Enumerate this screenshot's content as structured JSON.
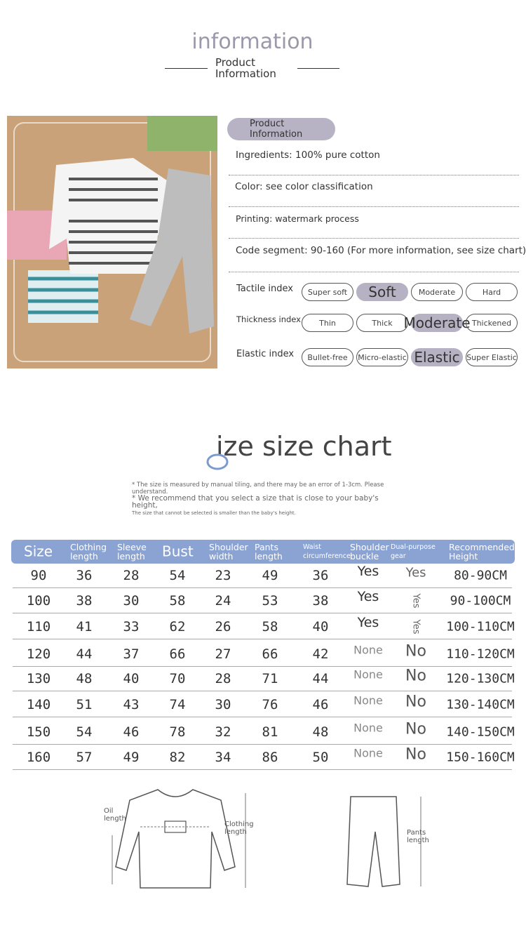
{
  "header": {
    "title": "information",
    "subtitle": "Product Information"
  },
  "info": {
    "badge": "Product Information",
    "lines": [
      "Ingredients: 100% pure cotton",
      "Color: see color classification",
      "Printing: watermark process",
      "Code segment: 90-160 (For more information, see size chart)"
    ]
  },
  "indices": [
    {
      "label": "Tactile index",
      "options": [
        "Super soft",
        "Soft",
        "Moderate",
        "Hard"
      ],
      "selected": 1
    },
    {
      "label": "Thickness index",
      "options": [
        "Thin",
        "Thick",
        "Moderate",
        "Thickened"
      ],
      "selected": 2
    },
    {
      "label": "Elastic index",
      "options": [
        "Bullet-free",
        "Micro-elastic",
        "Elastic",
        "Super Elastic"
      ],
      "selected": 2
    }
  ],
  "size_chart": {
    "title": "ize size chart",
    "notes": [
      "* The size is measured by manual tiling, and there may be an error of 1-3cm. Please understand.",
      "* We recommend that you select a size that is close to your baby's height,",
      "The size that cannot be selected is smaller than the baby's height."
    ],
    "columns": [
      "Size",
      "Clothing length",
      "Sleeve length",
      "Bust",
      "Shoulder width",
      "Pants length",
      "Waist circumference",
      "Shoulder buckle",
      "Dual-purpose gear",
      "Recommended Height"
    ],
    "rows": [
      [
        90,
        36,
        28,
        54,
        23,
        49,
        36,
        "Yes",
        "Yes",
        "80-90CM"
      ],
      [
        100,
        38,
        30,
        58,
        24,
        53,
        38,
        "Yes",
        "Yes",
        "90-100CM"
      ],
      [
        110,
        41,
        33,
        62,
        26,
        58,
        40,
        "Yes",
        "Yes",
        "100-110CM"
      ],
      [
        120,
        44,
        37,
        66,
        27,
        66,
        42,
        "None",
        "No",
        "110-120CM"
      ],
      [
        130,
        48,
        40,
        70,
        28,
        71,
        44,
        "None",
        "No",
        "120-130CM"
      ],
      [
        140,
        51,
        43,
        74,
        30,
        76,
        46,
        "None",
        "No",
        "130-140CM"
      ],
      [
        150,
        54,
        46,
        78,
        32,
        81,
        48,
        "None",
        "No",
        "140-150CM"
      ],
      [
        160,
        57,
        49,
        82,
        34,
        86,
        50,
        "None",
        "No",
        "150-160CM"
      ]
    ]
  },
  "diagrams": {
    "top_label": "Oil length",
    "shirt_label": "Clothing length",
    "pants_label": "Pants length"
  }
}
